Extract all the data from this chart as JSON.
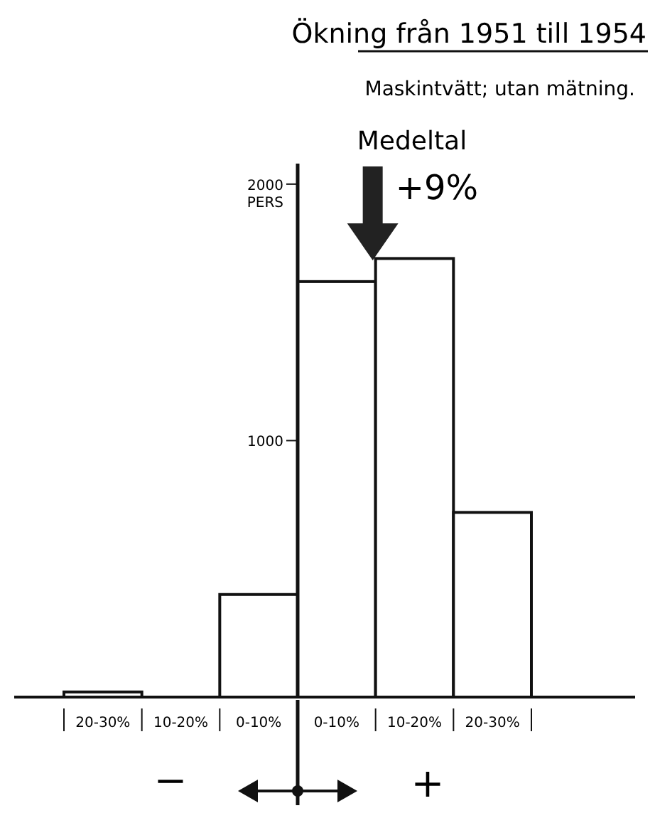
{
  "chart_data": {
    "type": "bar",
    "title": "Ökning från 1951 till 1954",
    "subtitle": "Maskintvätt; utan mätning.",
    "ylabel": "PERS",
    "categories": [
      "20-30%",
      "10-20%",
      "0-10%",
      "0-10%",
      "10-20%",
      "20-30%"
    ],
    "values": [
      20,
      0,
      400,
      1620,
      1710,
      720
    ],
    "color": "#ffffff",
    "ylim": [
      0,
      2080
    ],
    "yticks": [
      1000,
      2000
    ],
    "annotations": [
      "Medeltal",
      "+9%",
      "−",
      "+"
    ]
  }
}
